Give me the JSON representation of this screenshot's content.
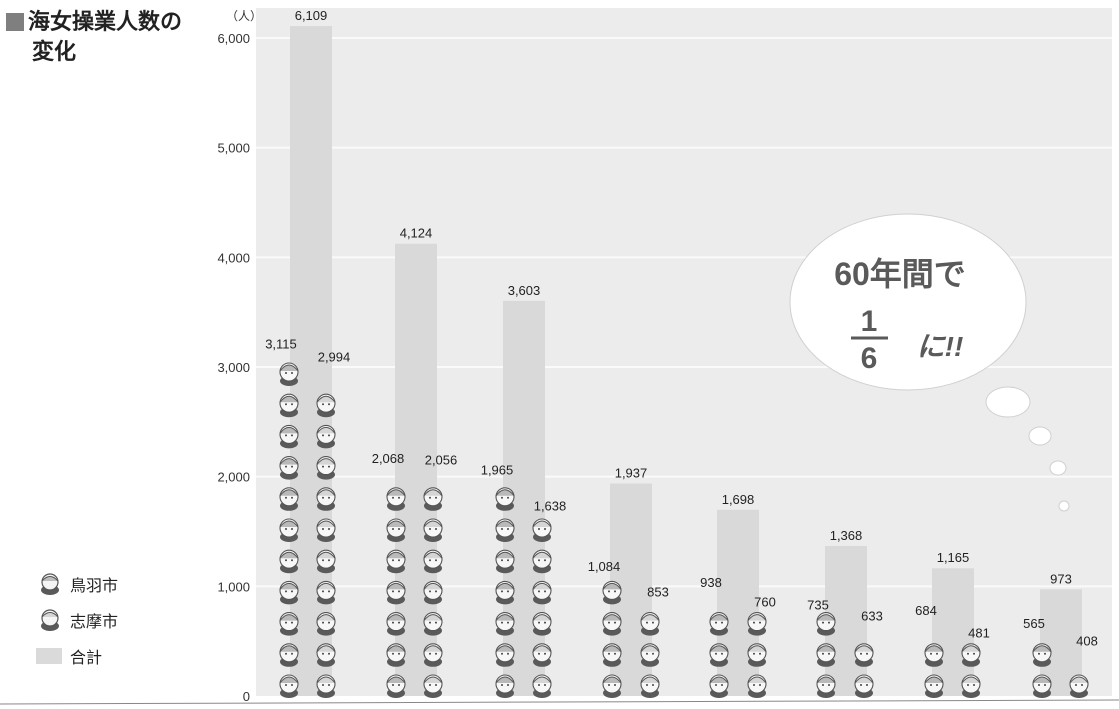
{
  "title": {
    "line1": "海女操業人数の",
    "line2": "変化"
  },
  "chart_data": {
    "type": "bar",
    "unit_label": "（人）",
    "ylim": [
      0,
      6000
    ],
    "yticks": [
      "0",
      "1,000",
      "2,000",
      "3,000",
      "4,000",
      "5,000",
      "6,000"
    ],
    "categories": [
      "",
      "",
      "",
      "",
      "",
      "",
      "",
      ""
    ],
    "series": [
      {
        "name": "鳥羽市",
        "values": [
          3115,
          2068,
          1965,
          1084,
          938,
          735,
          684,
          565
        ],
        "labels": [
          "3,115",
          "2,068",
          "1,965",
          "1,084",
          "938",
          "735",
          "684",
          "565"
        ]
      },
      {
        "name": "志摩市",
        "values": [
          2994,
          2056,
          1638,
          853,
          760,
          633,
          481,
          408
        ],
        "labels": [
          "2,994",
          "2,056",
          "1,638",
          "853",
          "760",
          "633",
          "481",
          "408"
        ]
      },
      {
        "name": "合計",
        "values": [
          6109,
          4124,
          3603,
          1937,
          1698,
          1368,
          1165,
          973
        ],
        "labels": [
          "6,109",
          "4,124",
          "3,603",
          "1,937",
          "1,698",
          "1,368",
          "1,165",
          "973"
        ]
      }
    ],
    "grid": true,
    "legend_position": "bottom-left"
  },
  "callout": {
    "line1": "60年間で",
    "numerator": "1",
    "denominator": "6",
    "suffix": "に!!"
  },
  "colors": {
    "total_bar": "#d9d9d9",
    "plot_bg": "#ececec",
    "grid": "#fafafa",
    "figure_face": "#f6f6f6",
    "figure_line": "#555555"
  }
}
